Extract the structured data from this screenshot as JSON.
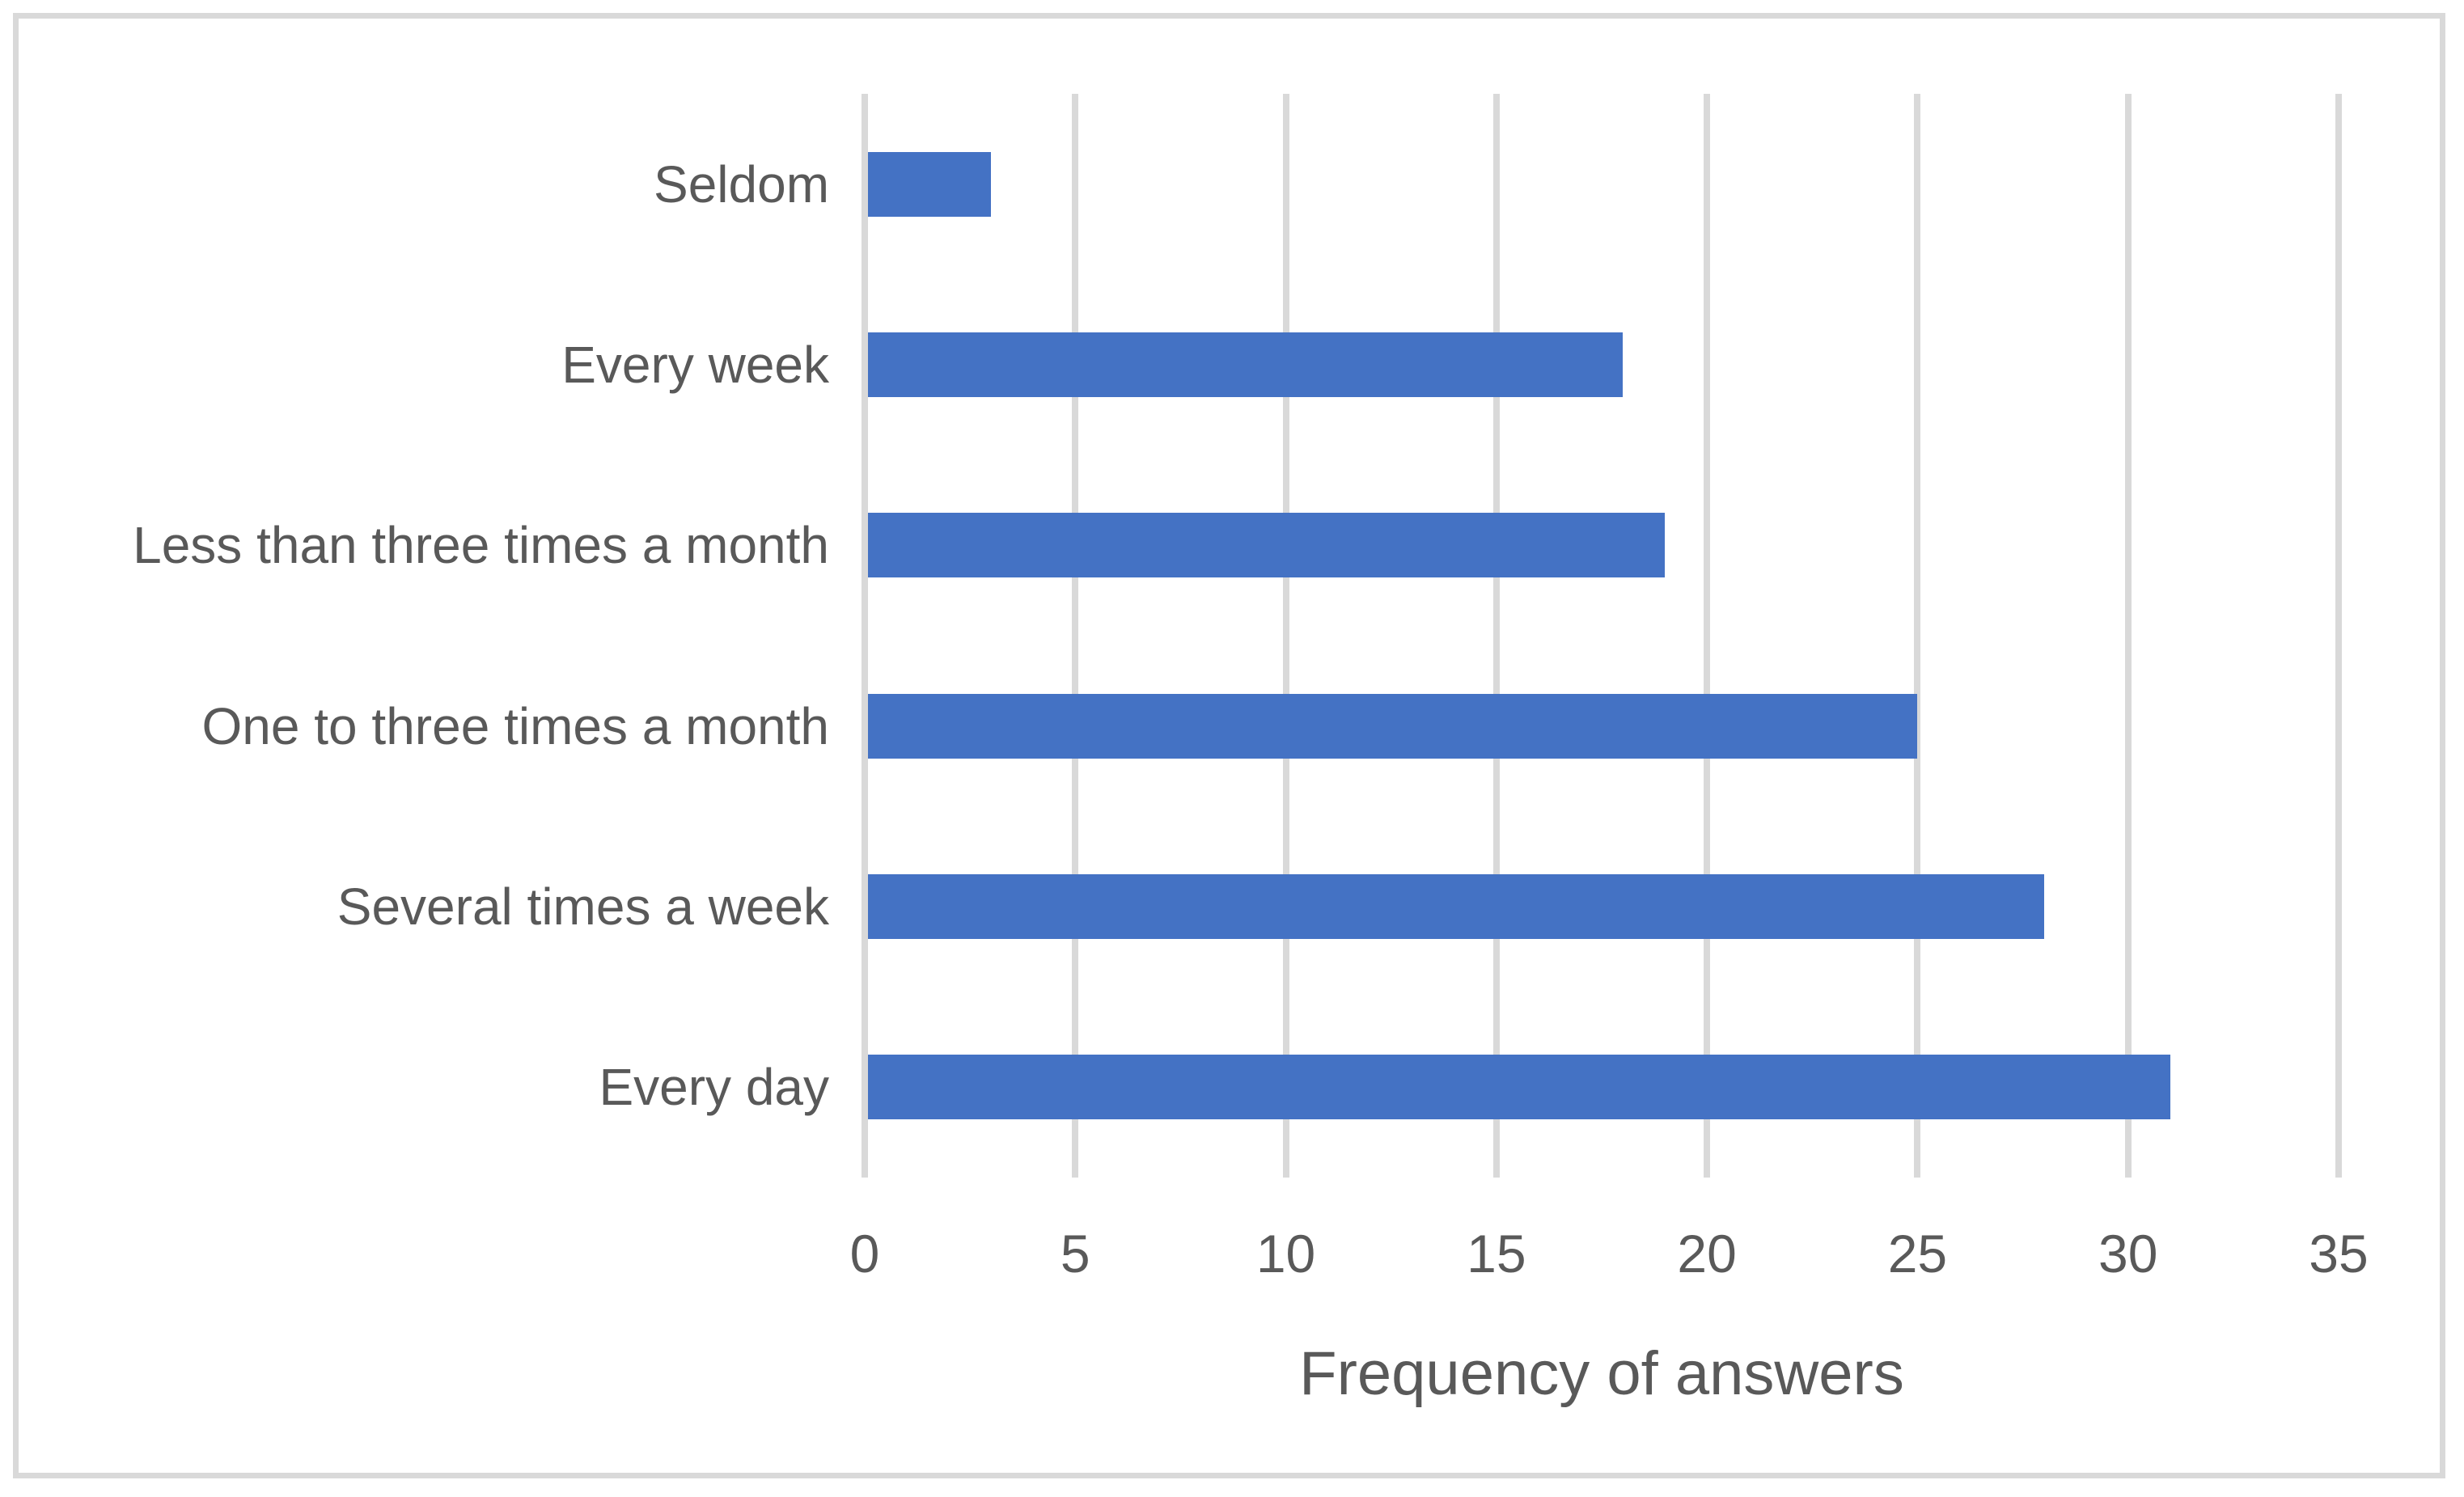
{
  "chart_data": {
    "type": "bar",
    "orientation": "horizontal",
    "categories": [
      "Seldom",
      "Every week",
      "Less than three times a month",
      "One to three times a month",
      "Several times a week",
      "Every day"
    ],
    "values": [
      3,
      18,
      19,
      25,
      28,
      31
    ],
    "title": "",
    "xlabel": "Frequency of answers",
    "ylabel": "",
    "xlim": [
      0,
      35
    ],
    "xticks": [
      0,
      5,
      10,
      15,
      20,
      25,
      30,
      35
    ],
    "grid": true,
    "legend": "none",
    "bar_color": "#4472C4",
    "gridline_color": "#D9D9D9",
    "axis_text_color": "#595959",
    "frame_border_color": "#D9D9D9",
    "background_color": "#FFFFFF"
  }
}
